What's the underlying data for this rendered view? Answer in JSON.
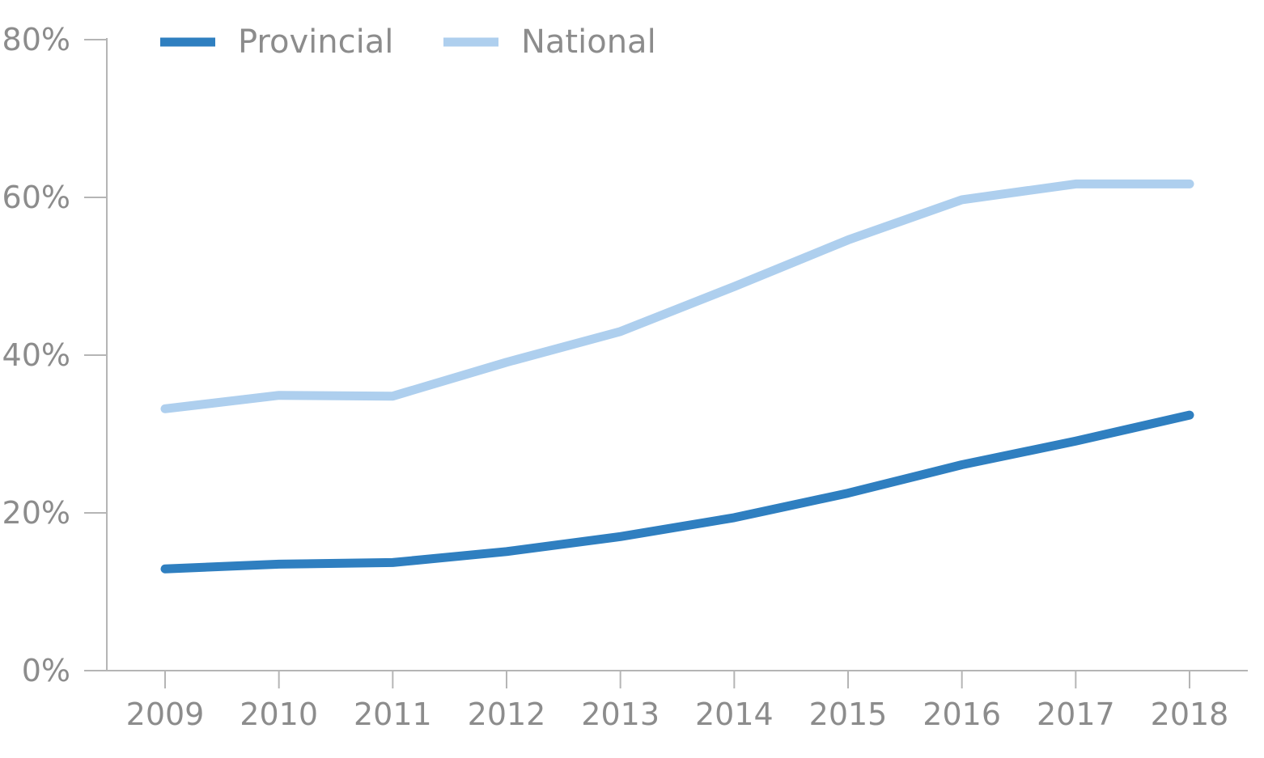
{
  "chart_data": {
    "type": "line",
    "title": "",
    "xlabel": "",
    "ylabel": "",
    "x": [
      "2009",
      "2010",
      "2011",
      "2012",
      "2013",
      "2014",
      "2015",
      "2016",
      "2017",
      "2018"
    ],
    "ylim": [
      0,
      80
    ],
    "yticks": [
      0,
      20,
      40,
      60,
      80
    ],
    "ytick_labels": [
      "0%",
      "20%",
      "40%",
      "60%",
      "80%"
    ],
    "grid": false,
    "legend_position": "top-left",
    "series": [
      {
        "name": "Provincial",
        "color": "#2f7fc0",
        "values": [
          12.9,
          13.5,
          13.7,
          15.1,
          17.0,
          19.4,
          22.5,
          26.1,
          29.1,
          32.4
        ]
      },
      {
        "name": "National",
        "color": "#aecfee",
        "values": [
          33.2,
          34.9,
          34.8,
          39.1,
          43.0,
          48.7,
          54.6,
          59.7,
          61.7,
          61.7
        ]
      }
    ]
  }
}
